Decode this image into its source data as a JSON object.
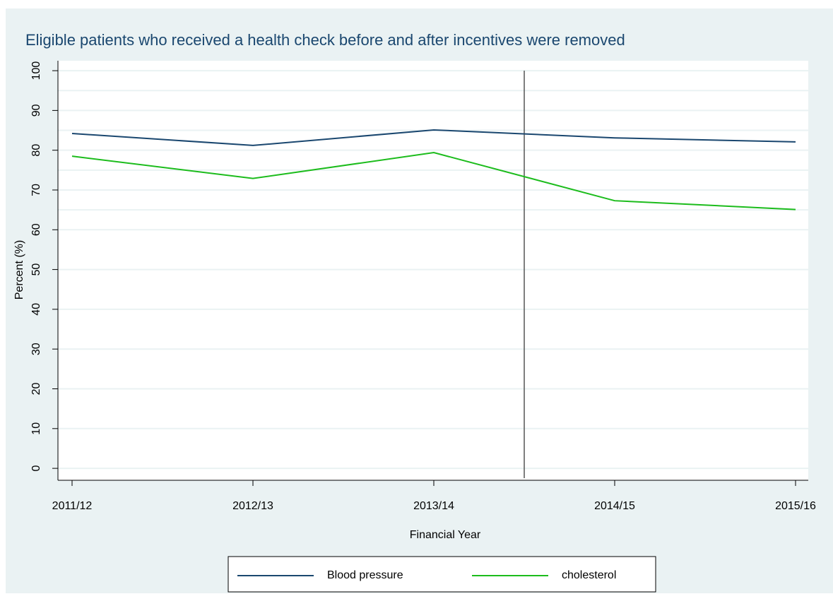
{
  "chart_data": {
    "type": "line",
    "title": "Eligible patients who received a health check before and after incentives were removed",
    "x_label": "Financial Year",
    "y_label": "Percent (%)",
    "categories": [
      "2011/12",
      "2012/13",
      "2013/14",
      "2014/15",
      "2015/16"
    ],
    "series": [
      {
        "name": "Blood pressure",
        "color": "#1a476f",
        "values": [
          84.2,
          81.2,
          85.1,
          83.1,
          82.1
        ]
      },
      {
        "name": "cholesterol",
        "color": "#1cbc1c",
        "values": [
          78.5,
          72.9,
          79.4,
          67.3,
          65.1
        ]
      }
    ],
    "ylim": [
      -3,
      102.5
    ],
    "yticks": [
      0,
      10,
      20,
      30,
      40,
      50,
      60,
      70,
      80,
      90,
      100
    ],
    "ygrid_extra": [
      65,
      75,
      85,
      95
    ],
    "xline": 2.5,
    "grid": true,
    "legend": "bottom"
  }
}
